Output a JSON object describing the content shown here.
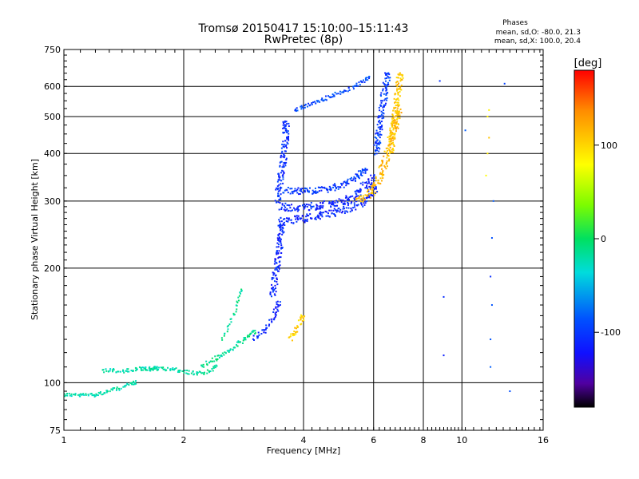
{
  "chart_data": {
    "type": "scatter",
    "title": "Tromsø 20150417 15:10:00–15:11:43",
    "subtitle": "RwPretec (8p)",
    "xlabel": "Frequency [MHz]",
    "ylabel": "Stationary phase Virtual Height [km]",
    "x_scale": "log",
    "y_scale": "log",
    "xlim": [
      1,
      16
    ],
    "ylim": [
      75,
      750
    ],
    "x_ticks": [
      1,
      2,
      4,
      6,
      8,
      10,
      16
    ],
    "y_ticks": [
      75,
      100,
      200,
      300,
      400,
      500,
      600,
      750
    ],
    "grid": true,
    "phase_box": {
      "title": "Phases",
      "line1": "mean, sd,O: -80.0, 21.3",
      "line2": "mean, sd,X: 100.0, 20.4"
    },
    "colorbar": {
      "label": "[deg]",
      "ticks": [
        100,
        0,
        -100
      ],
      "range": [
        -180,
        180
      ]
    },
    "traces": [
      {
        "x": [
          1.0,
          1.05,
          1.1,
          1.15,
          1.2,
          1.25,
          1.3,
          1.35,
          1.4,
          1.45,
          1.5
        ],
        "y": [
          93,
          93,
          92.5,
          93,
          93,
          94,
          95,
          96,
          97,
          99,
          100
        ],
        "phase": -25,
        "density": 3
      },
      {
        "x": [
          1.25,
          1.3,
          1.4,
          1.5,
          1.6,
          1.7
        ],
        "y": [
          107,
          108,
          107,
          108,
          109,
          109
        ],
        "phase": -25,
        "density": 3
      },
      {
        "x": [
          1.6,
          1.7,
          1.8,
          1.9,
          2.0,
          2.1,
          2.2,
          2.3,
          2.4
        ],
        "y": [
          108,
          109,
          109,
          108,
          107,
          106,
          106,
          107,
          110
        ],
        "phase": -20,
        "density": 3
      },
      {
        "x": [
          2.2,
          2.35,
          2.5,
          2.65,
          2.8,
          2.9,
          3.0
        ],
        "y": [
          110,
          114,
          118,
          123,
          128,
          132,
          136
        ],
        "phase": -15,
        "density": 3
      },
      {
        "x": [
          2.5,
          2.58,
          2.65,
          2.72,
          2.78
        ],
        "y": [
          130,
          138,
          148,
          160,
          175
        ],
        "phase": -15,
        "density": 2
      },
      {
        "x": [
          3.0,
          3.1,
          3.2,
          3.3,
          3.4,
          3.45
        ],
        "y": [
          130,
          133,
          138,
          144,
          152,
          162
        ],
        "phase": -110,
        "density": 4
      },
      {
        "x": [
          3.35,
          3.4,
          3.45,
          3.5,
          3.52
        ],
        "y": [
          170,
          190,
          210,
          240,
          260
        ],
        "phase": -110,
        "density": 5
      },
      {
        "x": [
          3.45,
          3.5,
          3.55,
          3.6,
          3.62
        ],
        "y": [
          300,
          340,
          380,
          430,
          480
        ],
        "phase": -105,
        "density": 5
      },
      {
        "x": [
          3.45,
          3.8,
          4.2,
          4.8,
          5.3,
          5.7,
          6.0
        ],
        "y": [
          265,
          268,
          272,
          280,
          290,
          300,
          320
        ],
        "phase": -110,
        "density": 6
      },
      {
        "x": [
          3.5,
          3.9,
          4.4,
          5.0,
          5.5,
          5.9
        ],
        "y": [
          290,
          288,
          292,
          300,
          315,
          345
        ],
        "phase": -110,
        "density": 6
      },
      {
        "x": [
          3.6,
          4.0,
          4.6,
          5.2,
          5.7
        ],
        "y": [
          320,
          318,
          322,
          335,
          360
        ],
        "phase": -100,
        "density": 5
      },
      {
        "x": [
          5.5,
          5.8,
          6.1,
          6.3,
          6.5,
          6.7,
          6.9
        ],
        "y": [
          300,
          310,
          330,
          360,
          400,
          450,
          520
        ],
        "phase": 110,
        "density": 6
      },
      {
        "x": [
          6.1,
          6.2,
          6.3,
          6.4,
          6.5
        ],
        "y": [
          400,
          460,
          520,
          580,
          640
        ],
        "phase": -100,
        "density": 5
      },
      {
        "x": [
          6.6,
          6.7,
          6.8,
          6.9,
          7.0
        ],
        "y": [
          400,
          450,
          500,
          560,
          640
        ],
        "phase": 105,
        "density": 5
      },
      {
        "x": [
          3.8,
          4.2,
          4.6,
          5.0,
          5.4,
          5.8
        ],
        "y": [
          520,
          540,
          560,
          580,
          600,
          630
        ],
        "phase": -95,
        "density": 3
      },
      {
        "x": [
          3.7,
          3.8,
          3.9,
          4.0
        ],
        "y": [
          130,
          135,
          142,
          150
        ],
        "phase": 100,
        "density": 4
      },
      {
        "x": [
          11.8,
          11.8,
          11.9,
          11.8,
          11.9,
          12.0
        ],
        "y": [
          110,
          130,
          160,
          190,
          240,
          300
        ],
        "phase": -100,
        "density": 1
      },
      {
        "x": [
          11.5,
          11.6,
          11.7,
          11.6,
          11.7
        ],
        "y": [
          350,
          400,
          440,
          500,
          520
        ],
        "phase": 95,
        "density": 1
      },
      {
        "x": [
          8.8,
          9.0,
          10.2,
          12.8,
          13.2,
          9.0
        ],
        "y": [
          620,
          118,
          460,
          610,
          95,
          168
        ],
        "phase": -100,
        "density": 1
      }
    ]
  }
}
